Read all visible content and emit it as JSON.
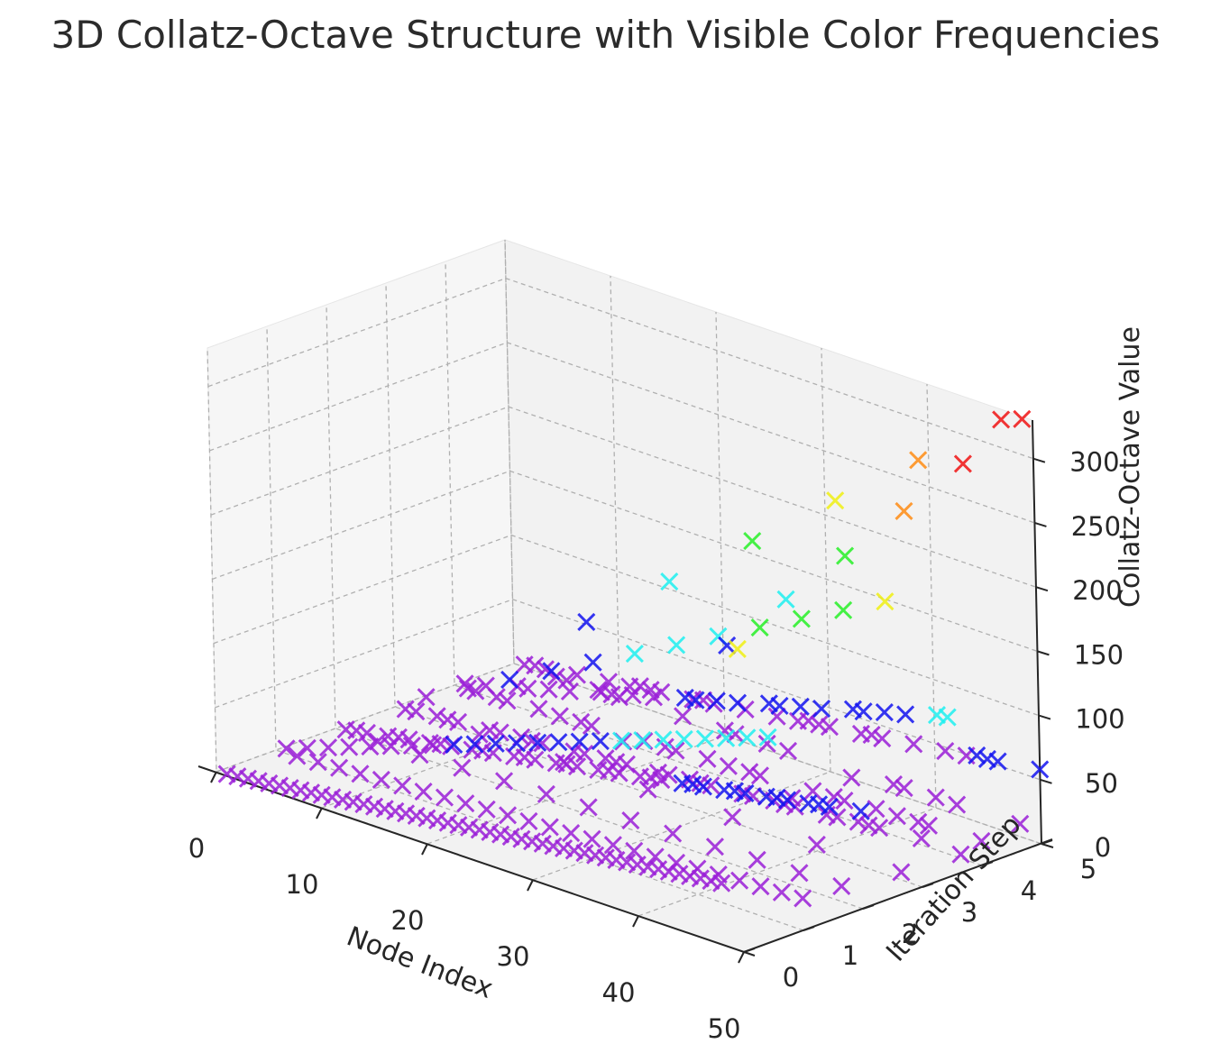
{
  "chart_data": {
    "type": "scatter",
    "projection": "3d",
    "title": "3D Collatz-Octave Structure with Visible Color Frequencies",
    "xlabel": "Node Index",
    "ylabel": "Iteration Step",
    "zlabel": "Collatz-Octave Value",
    "xlim": [
      0,
      50
    ],
    "ylim": [
      0,
      5
    ],
    "zlim": [
      0,
      330
    ],
    "x_ticks": [
      "0",
      "10",
      "20",
      "30",
      "40",
      "50"
    ],
    "y_ticks": [
      "0",
      "1",
      "2",
      "3",
      "4",
      "5"
    ],
    "z_ticks": [
      "0",
      "50",
      "100",
      "150",
      "200",
      "250",
      "300"
    ],
    "grid": true,
    "marker": "x",
    "colors": {
      "violet": "#9b1fd8",
      "blue": "#1414f0",
      "cyan": "#1ef0f0",
      "green": "#28f028",
      "yellow": "#f0f014",
      "orange": "#ff8c14",
      "red": "#f01414"
    },
    "highlight_points": [
      {
        "x": 49,
        "y": 5,
        "z": 328,
        "color": "red"
      },
      {
        "x": 49,
        "y": 4,
        "z": 310,
        "color": "red"
      },
      {
        "x": 49,
        "y": 3,
        "z": 290,
        "color": "orange"
      },
      {
        "x": 49,
        "y": 2,
        "z": 272,
        "color": "green"
      },
      {
        "x": 49,
        "y": 1,
        "z": 255,
        "color": "cyan"
      },
      {
        "x": 49,
        "y": 0,
        "z": 236,
        "color": "blue"
      }
    ]
  }
}
